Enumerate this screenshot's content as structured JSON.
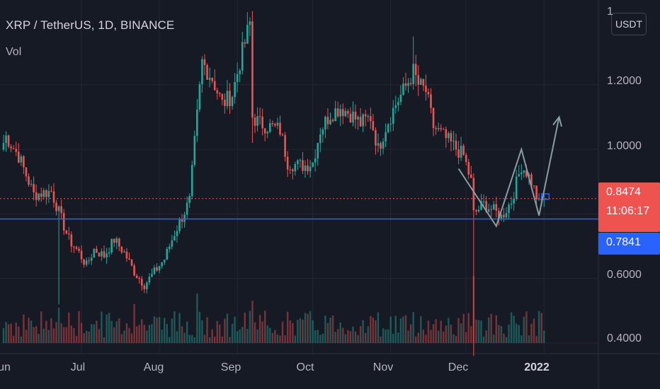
{
  "header": {
    "title": "XRP / TetherUS, 1D, BINANCE",
    "indicator": "Vol"
  },
  "currency_button": {
    "label": "USDT"
  },
  "price_scale": {
    "ticks": [
      "1.2000",
      "1.0000",
      "0.6000",
      "0.4000"
    ],
    "partial_top_tick": "1"
  },
  "time_scale": {
    "ticks": [
      "un",
      "Jul",
      "Aug",
      "Sep",
      "Oct",
      "Nov",
      "Dec",
      "2022"
    ]
  },
  "last_price": {
    "value": "0.8474",
    "countdown": "11:06:17",
    "color": "#ef5350"
  },
  "support_line": {
    "value": "0.7841",
    "color": "#2962ff"
  },
  "colors": {
    "background": "#161a25",
    "up": "#26a69a",
    "down": "#ef5350",
    "grid": "#242733",
    "drawing": "#8a9ca3"
  },
  "chart_data": {
    "type": "candlestick",
    "symbol": "XRP / TetherUS",
    "interval": "1D",
    "exchange": "BINANCE",
    "price_range": [
      0.38,
      1.43
    ],
    "x_range": [
      "2021-05-31",
      "2022-01-22"
    ],
    "last_price": 0.8474,
    "support_level": 0.7841,
    "close_anchors": [
      [
        "2021-05-31",
        1.02
      ],
      [
        "2021-06-01",
        1.04
      ],
      [
        "2021-06-06",
        0.98
      ],
      [
        "2021-06-12",
        0.86
      ],
      [
        "2021-06-19",
        0.87
      ],
      [
        "2021-06-26",
        0.72
      ],
      [
        "2021-06-30",
        0.68
      ],
      [
        "2021-07-03",
        0.64
      ],
      [
        "2021-07-06",
        0.69
      ],
      [
        "2021-07-10",
        0.67
      ],
      [
        "2021-07-14",
        0.72
      ],
      [
        "2021-07-18",
        0.68
      ],
      [
        "2021-07-22",
        0.62
      ],
      [
        "2021-07-26",
        0.58
      ],
      [
        "2021-07-30",
        0.62
      ],
      [
        "2021-08-03",
        0.66
      ],
      [
        "2021-08-07",
        0.74
      ],
      [
        "2021-08-10",
        0.79
      ],
      [
        "2021-08-13",
        0.84
      ],
      [
        "2021-08-15",
        1.02
      ],
      [
        "2021-08-18",
        1.27
      ],
      [
        "2021-08-22",
        1.22
      ],
      [
        "2021-08-26",
        1.14
      ],
      [
        "2021-08-30",
        1.17
      ],
      [
        "2021-09-02",
        1.27
      ],
      [
        "2021-09-06",
        1.39
      ],
      [
        "2021-09-07",
        1.1
      ],
      [
        "2021-09-10",
        1.08
      ],
      [
        "2021-09-14",
        1.07
      ],
      [
        "2021-09-18",
        1.06
      ],
      [
        "2021-09-21",
        0.96
      ],
      [
        "2021-09-25",
        0.95
      ],
      [
        "2021-09-28",
        0.95
      ],
      [
        "2021-10-01",
        0.96
      ],
      [
        "2021-10-04",
        1.06
      ],
      [
        "2021-10-08",
        1.11
      ],
      [
        "2021-10-12",
        1.13
      ],
      [
        "2021-10-16",
        1.11
      ],
      [
        "2021-10-20",
        1.08
      ],
      [
        "2021-10-24",
        1.1
      ],
      [
        "2021-10-27",
        1.0
      ],
      [
        "2021-10-30",
        1.07
      ],
      [
        "2021-11-03",
        1.14
      ],
      [
        "2021-11-06",
        1.18
      ],
      [
        "2021-11-10",
        1.24
      ],
      [
        "2021-11-12",
        1.2
      ],
      [
        "2021-11-15",
        1.18
      ],
      [
        "2021-11-18",
        1.07
      ],
      [
        "2021-11-22",
        1.04
      ],
      [
        "2021-11-26",
        1.01
      ],
      [
        "2021-11-30",
        0.98
      ],
      [
        "2021-12-03",
        0.9
      ],
      [
        "2021-12-04",
        0.8
      ],
      [
        "2021-12-08",
        0.83
      ],
      [
        "2021-12-12",
        0.81
      ],
      [
        "2021-12-15",
        0.79
      ],
      [
        "2021-12-19",
        0.84
      ],
      [
        "2021-12-23",
        0.95
      ],
      [
        "2021-12-25",
        0.93
      ],
      [
        "2021-12-27",
        0.9
      ],
      [
        "2021-12-30",
        0.83
      ],
      [
        "2022-01-01",
        0.847
      ]
    ],
    "pattern_drawing": {
      "type": "W-pattern projection",
      "points": [
        [
          "2021-11-28",
          0.94
        ],
        [
          "2021-12-13",
          0.762
        ],
        [
          "2021-12-23",
          1.0
        ],
        [
          "2021-12-30",
          0.795
        ],
        [
          "2022-01-07",
          1.1
        ]
      ]
    },
    "target_box": {
      "from": "2021-12-31",
      "to": "2022-01-03",
      "low": 0.845,
      "high": 0.862
    }
  }
}
